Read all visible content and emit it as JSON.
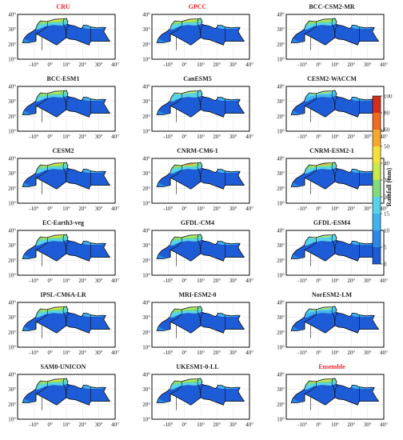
{
  "panels": [
    {
      "title": "CRU",
      "red": true,
      "wet": 1.0
    },
    {
      "title": "GPCC",
      "red": true,
      "wet": 1.0
    },
    {
      "title": "BCC-CSM2-MR",
      "red": false,
      "wet": 0.9
    },
    {
      "title": "BCC-ESM1",
      "red": false,
      "wet": 0.9
    },
    {
      "title": "CanESM5",
      "red": false,
      "wet": 0.8
    },
    {
      "title": "CESM2-WACCM",
      "red": false,
      "wet": 0.7
    },
    {
      "title": "CESM2",
      "red": false,
      "wet": 1.0
    },
    {
      "title": "CNRM-CM6-1",
      "red": false,
      "wet": 1.4
    },
    {
      "title": "CNRM-ESM2-1",
      "red": false,
      "wet": 1.4
    },
    {
      "title": "EC-Earth3-veg",
      "red": false,
      "wet": 1.0
    },
    {
      "title": "GFDL-CM4",
      "red": false,
      "wet": 0.9
    },
    {
      "title": "GFDL-ESM4",
      "red": false,
      "wet": 0.8
    },
    {
      "title": "IPSL-CM6A-LR",
      "red": false,
      "wet": 1.1
    },
    {
      "title": "MRI-ESM2-0",
      "red": false,
      "wet": 0.9
    },
    {
      "title": "NorESM2-LM",
      "red": false,
      "wet": 0.7
    },
    {
      "title": "SAM0-UNICON",
      "red": false,
      "wet": 1.1
    },
    {
      "title": "UKESM1-0-LL",
      "red": false,
      "wet": 0.9
    },
    {
      "title": "Ensemble",
      "red": true,
      "wet": 1.0
    }
  ],
  "axes": {
    "lat_ticks": [
      "10°",
      "20°",
      "30°",
      "40°"
    ],
    "lon_ticks": [
      "-10°",
      "0°",
      "10°",
      "20°",
      "30°",
      "40°"
    ]
  },
  "colorbar": {
    "title": "Rainfall (mm)",
    "levels": [
      "0",
      "5",
      "10",
      "15",
      "20",
      "30",
      "40",
      "50",
      "60",
      "80",
      "100"
    ],
    "colors": [
      "#1e5bd6",
      "#2b88e8",
      "#3fb3ef",
      "#56d2e9",
      "#7fdc7a",
      "#c9e84a",
      "#f5e13a",
      "#f7a92e",
      "#f06a23",
      "#d62d1a"
    ]
  },
  "colors": {
    "background": "#ffffff",
    "frame": "#000000"
  }
}
